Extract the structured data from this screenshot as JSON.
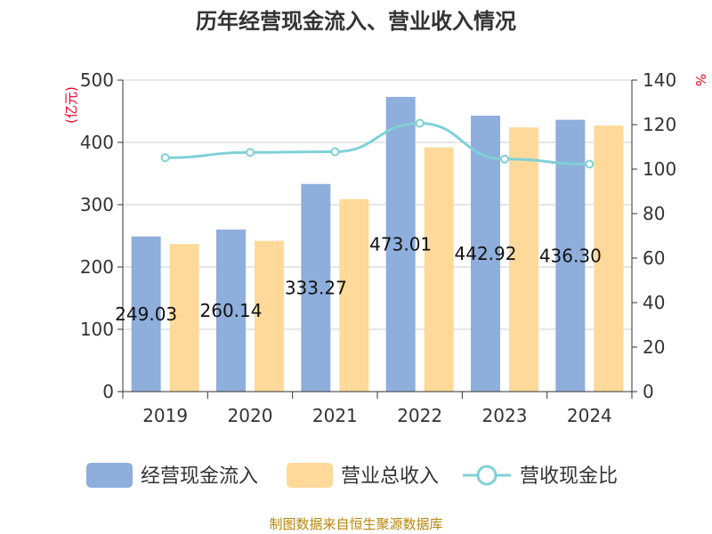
{
  "chart_data": {
    "type": "bar",
    "title": "历年经营现金流入、营业收入情况",
    "categories": [
      "2019",
      "2020",
      "2021",
      "2022",
      "2023",
      "2024"
    ],
    "y_left": {
      "unit": "(亿元)",
      "range": [
        0,
        500
      ],
      "ticks": [
        0,
        100,
        200,
        300,
        400,
        500
      ]
    },
    "y_right": {
      "unit": "%",
      "range": [
        0,
        140
      ],
      "ticks": [
        0,
        20,
        40,
        60,
        80,
        100,
        120,
        140
      ]
    },
    "series": [
      {
        "name": "经营现金流入",
        "type": "bar",
        "axis": "left",
        "color": "#8eaedc",
        "values": [
          249.03,
          260.14,
          333.27,
          473.01,
          442.92,
          436.3
        ],
        "labels": [
          "249.03",
          "260.14",
          "333.27",
          "473.01",
          "442.92",
          "436.30"
        ]
      },
      {
        "name": "营业总收入",
        "type": "bar",
        "axis": "left",
        "color": "#ffd999",
        "values": [
          237,
          242,
          309,
          392,
          424,
          427
        ]
      },
      {
        "name": "营收现金比",
        "type": "line",
        "axis": "right",
        "color": "#7fd1d6",
        "values": [
          105.1,
          107.5,
          107.8,
          120.6,
          104.5,
          102.2
        ]
      }
    ],
    "gridlines": true,
    "legend_position": "bottom"
  },
  "source": "制图数据来自恒生聚源数据库"
}
